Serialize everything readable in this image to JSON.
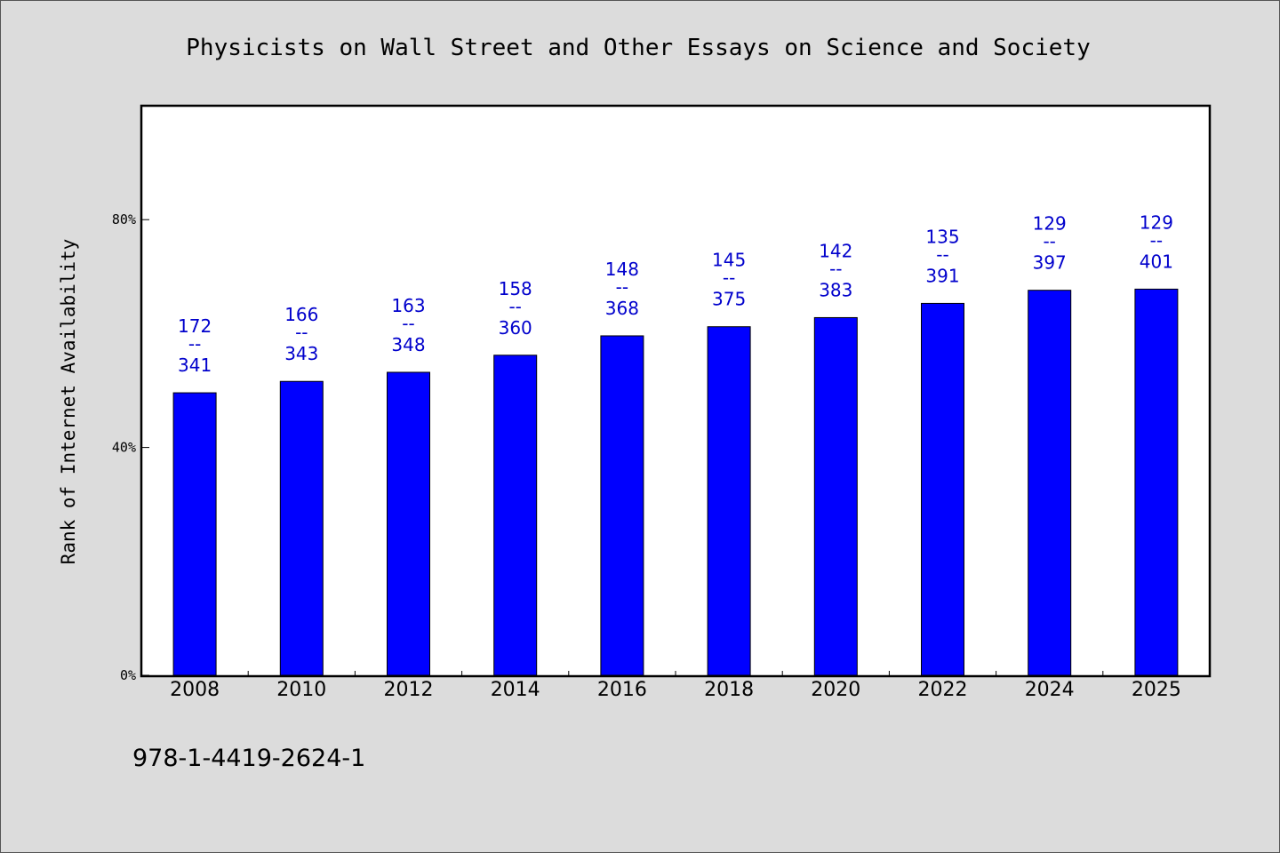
{
  "chart_data": {
    "type": "bar",
    "title": "Physicists on Wall Street and Other Essays on Science and Society",
    "ylabel": "Rank of Internet Availability",
    "xlabel": "",
    "categories": [
      "2008",
      "2010",
      "2012",
      "2014",
      "2016",
      "2018",
      "2020",
      "2022",
      "2024",
      "2025"
    ],
    "values": [
      49.6,
      51.6,
      53.2,
      56.2,
      59.6,
      61.2,
      62.8,
      65.3,
      67.6,
      67.8
    ],
    "bar_labels": [
      {
        "top": "172",
        "mid": "--",
        "bottom": "341"
      },
      {
        "top": "166",
        "mid": "--",
        "bottom": "343"
      },
      {
        "top": "163",
        "mid": "--",
        "bottom": "348"
      },
      {
        "top": "158",
        "mid": "--",
        "bottom": "360"
      },
      {
        "top": "148",
        "mid": "--",
        "bottom": "368"
      },
      {
        "top": "145",
        "mid": "--",
        "bottom": "375"
      },
      {
        "top": "142",
        "mid": "--",
        "bottom": "383"
      },
      {
        "top": "135",
        "mid": "--",
        "bottom": "391"
      },
      {
        "top": "129",
        "mid": "--",
        "bottom": "397"
      },
      {
        "top": "129",
        "mid": "--",
        "bottom": "401"
      }
    ],
    "yticks": [
      0,
      40,
      80
    ],
    "ytick_labels": [
      "0%",
      "40%",
      "80%"
    ],
    "ylim": [
      0,
      100
    ],
    "grid": false,
    "bar_color": "#0000ff",
    "label_color": "#0000cc"
  },
  "footer": {
    "isbn": "978-1-4419-2624-1"
  }
}
